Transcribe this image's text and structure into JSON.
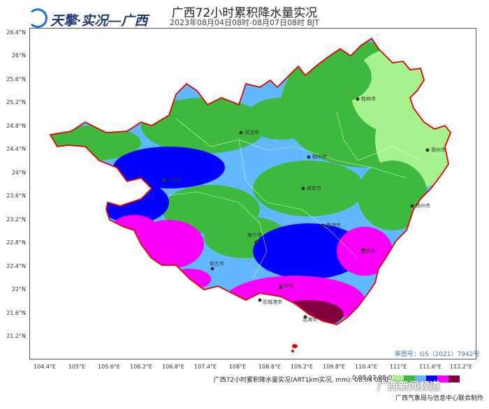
{
  "header": {
    "logo_text": "天擎·实况—广西",
    "title": "广西72小时累积降水量实况",
    "subtitle": "2023年08月04日08时-08月07日08时 BJT"
  },
  "axes": {
    "y_ticks": [
      "26.4°N",
      "26°N",
      "25.6°N",
      "25.2°N",
      "24.8°N",
      "24.4°N",
      "24°N",
      "23.6°N",
      "23.2°N",
      "22.8°N",
      "22.4°N",
      "22°N",
      "21.6°N",
      "21.2°N"
    ],
    "x_ticks": [
      "104.4°E",
      "105°E",
      "105.6°E",
      "106.2°E",
      "106.8°E",
      "107.4°E",
      "108°E",
      "108.6°E",
      "109.2°E",
      "109.8°E",
      "110.4°E",
      "111°E",
      "111.6°E",
      "112.2°E"
    ]
  },
  "cities": [
    "桂林市",
    "贺州市",
    "河池市",
    "柳州市",
    "来宾市",
    "百色市",
    "南宁市",
    "贵港市",
    "梧州市",
    "崇左市",
    "玉林市",
    "钦州市",
    "防城港市",
    "北海市"
  ],
  "approval": "审图号：GS（2021）7942号",
  "legend": {
    "label": "广西72小时累积降水量实况(ART1km实况, mm): 08.04 08:0",
    "range": "0 08.07 08:00",
    "colors": [
      "#a6f28f",
      "#3dba3d",
      "#61b8ff",
      "#0000ff",
      "#fa00fa",
      "#800040"
    ]
  },
  "credit": "广西气象局与信息中心联合制作",
  "watermark": "广西新闻频道"
}
